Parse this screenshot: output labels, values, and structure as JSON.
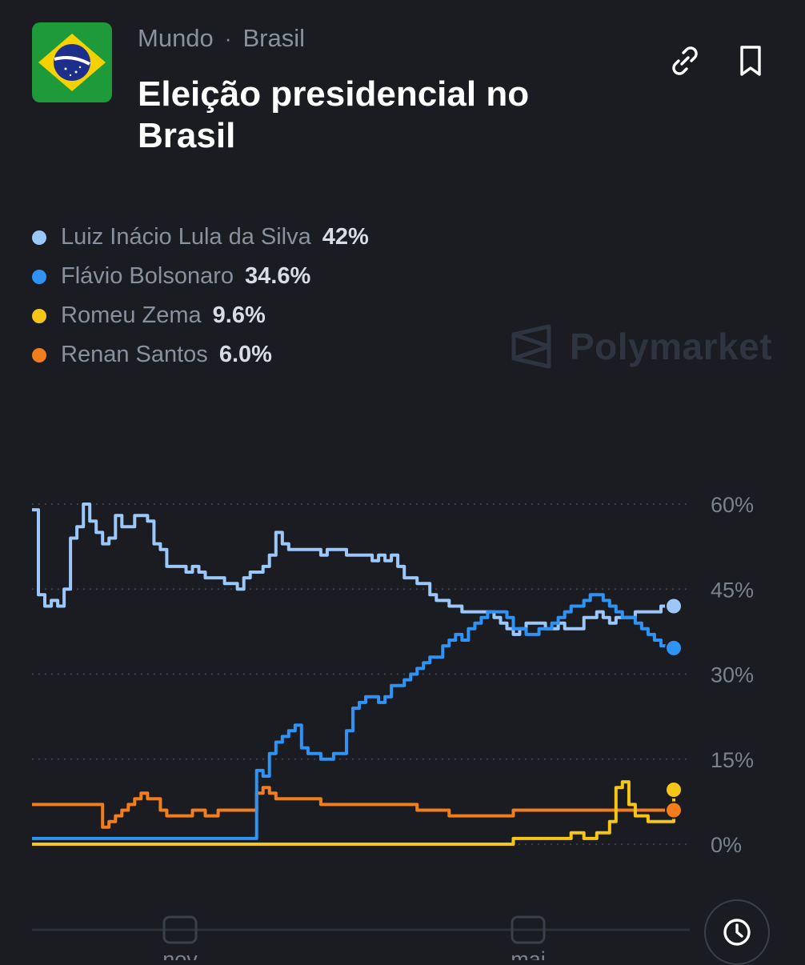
{
  "header": {
    "breadcrumb": [
      "Mundo",
      "Brasil"
    ],
    "separator": "·",
    "title": "Eleição presidencial no Brasil",
    "flag_icon": "brazil-flag-icon",
    "actions": [
      {
        "icon": "link-icon"
      },
      {
        "icon": "bookmark-icon"
      }
    ]
  },
  "legend": [
    {
      "name": "Luiz Inácio Lula da Silva",
      "value": "42%",
      "color": "#9cc7fb"
    },
    {
      "name": "Flávio Bolsonaro",
      "value": "34.6%",
      "color": "#2f93f5"
    },
    {
      "name": "Romeu Zema",
      "value": "9.6%",
      "color": "#f5c518"
    },
    {
      "name": "Renan Santos",
      "value": "6.0%",
      "color": "#f27d1c"
    }
  ],
  "watermark": "Polymarket",
  "chart_data": {
    "type": "line",
    "y_ticks": [
      "60%",
      "45%",
      "30%",
      "15%",
      "0%"
    ],
    "ylim": [
      0,
      60
    ],
    "x_tick_labels": [
      "nov",
      "mai"
    ],
    "grid": true,
    "legend_position": "top-left",
    "series": [
      {
        "name": "Luiz Inácio Lula da Silva",
        "color": "#9cc7fb",
        "x": [
          0,
          1,
          2,
          3,
          4,
          5,
          6,
          7,
          8,
          9,
          10,
          11,
          12,
          13,
          14,
          15,
          16,
          17,
          18,
          19,
          20,
          21,
          22,
          23,
          24,
          25,
          26,
          27,
          28,
          29,
          30,
          31,
          32,
          33,
          34,
          35,
          36,
          37,
          38,
          39,
          40,
          41,
          42,
          43,
          44,
          45,
          46,
          47,
          48,
          49,
          50,
          51,
          52,
          53,
          54,
          55,
          56,
          57,
          58,
          59,
          60,
          61,
          62,
          63,
          64,
          65,
          66,
          67,
          68,
          69,
          70,
          71,
          72,
          73,
          74,
          75,
          76,
          77,
          78,
          79,
          80,
          81,
          82,
          83,
          84,
          85,
          86,
          87,
          88,
          89,
          90,
          91,
          92,
          93,
          94,
          95,
          96,
          97,
          98,
          99,
          100
        ],
        "values": [
          59,
          44,
          42,
          43,
          42,
          45,
          54,
          56,
          60,
          57,
          55,
          53,
          54,
          58,
          56,
          56,
          58,
          58,
          57,
          53,
          52,
          49,
          49,
          49,
          48,
          49,
          48,
          47,
          47,
          47,
          46,
          46,
          45,
          47,
          48,
          48,
          49,
          51,
          55,
          53,
          52,
          52,
          52,
          52,
          52,
          51,
          52,
          52,
          52,
          51,
          51,
          51,
          51,
          50,
          51,
          50,
          51,
          49,
          47,
          47,
          46,
          46,
          44,
          43,
          43,
          42,
          42,
          41,
          41,
          41,
          41,
          41,
          40,
          39,
          38,
          37,
          38,
          39,
          39,
          39,
          38,
          38,
          39,
          38,
          38,
          38,
          40,
          40,
          41,
          40,
          39,
          40,
          40,
          40,
          41,
          41,
          41,
          41,
          42,
          42,
          42
        ]
      },
      {
        "name": "Flávio Bolsonaro",
        "color": "#2f93f5",
        "x": [
          0,
          1,
          2,
          3,
          4,
          5,
          6,
          7,
          8,
          9,
          10,
          11,
          12,
          13,
          14,
          15,
          16,
          17,
          18,
          19,
          20,
          21,
          22,
          23,
          24,
          25,
          26,
          27,
          28,
          29,
          30,
          31,
          32,
          33,
          34,
          35,
          36,
          37,
          38,
          39,
          40,
          41,
          42,
          43,
          44,
          45,
          46,
          47,
          48,
          49,
          50,
          51,
          52,
          53,
          54,
          55,
          56,
          57,
          58,
          59,
          60,
          61,
          62,
          63,
          64,
          65,
          66,
          67,
          68,
          69,
          70,
          71,
          72,
          73,
          74,
          75,
          76,
          77,
          78,
          79,
          80,
          81,
          82,
          83,
          84,
          85,
          86,
          87,
          88,
          89,
          90,
          91,
          92,
          93,
          94,
          95,
          96,
          97,
          98,
          99,
          100
        ],
        "values": [
          1,
          1,
          1,
          1,
          1,
          1,
          1,
          1,
          1,
          1,
          1,
          1,
          1,
          1,
          1,
          1,
          1,
          1,
          1,
          1,
          1,
          1,
          1,
          1,
          1,
          1,
          1,
          1,
          1,
          1,
          1,
          1,
          1,
          1,
          1,
          13,
          12,
          16,
          18,
          19,
          20,
          21,
          17,
          16,
          16,
          15,
          15,
          16,
          16,
          20,
          24,
          25,
          26,
          26,
          25,
          26,
          28,
          28,
          29,
          30,
          31,
          32,
          33,
          33,
          35,
          36,
          37,
          36,
          38,
          39,
          40,
          41,
          41,
          41,
          40,
          38,
          38,
          37,
          37,
          38,
          38,
          39,
          40,
          41,
          42,
          42,
          43,
          44,
          44,
          43,
          42,
          41,
          40,
          40,
          39,
          38,
          37,
          36,
          35,
          34.6,
          34.6
        ]
      },
      {
        "name": "Romeu Zema",
        "color": "#f5c518",
        "x": [
          0,
          10,
          20,
          30,
          40,
          50,
          60,
          70,
          75,
          78,
          80,
          82,
          84,
          86,
          88,
          90,
          91,
          92,
          93,
          94,
          95,
          96,
          97,
          98,
          99,
          100
        ],
        "values": [
          0,
          0,
          0,
          0,
          0,
          0,
          0,
          0,
          1,
          1,
          1,
          1,
          2,
          1,
          2,
          4,
          10,
          11,
          7,
          5,
          5,
          4,
          4,
          4,
          4,
          9.6
        ]
      },
      {
        "name": "Renan Santos",
        "color": "#f27d1c",
        "x": [
          0,
          5,
          10,
          11,
          12,
          13,
          14,
          15,
          16,
          17,
          18,
          19,
          20,
          21,
          22,
          23,
          24,
          25,
          26,
          27,
          28,
          29,
          30,
          31,
          32,
          33,
          34,
          35,
          36,
          37,
          38,
          39,
          40,
          45,
          50,
          55,
          60,
          65,
          70,
          75,
          80,
          85,
          90,
          95,
          100
        ],
        "values": [
          7,
          7,
          7,
          3,
          4,
          5,
          6,
          7,
          8,
          9,
          8,
          8,
          6,
          5,
          5,
          5,
          5,
          6,
          6,
          5,
          5,
          6,
          6,
          6,
          6,
          6,
          6,
          9,
          10,
          9,
          8,
          8,
          8,
          7,
          7,
          7,
          6,
          5,
          5,
          6,
          6,
          6,
          6,
          6,
          6
        ]
      }
    ]
  }
}
